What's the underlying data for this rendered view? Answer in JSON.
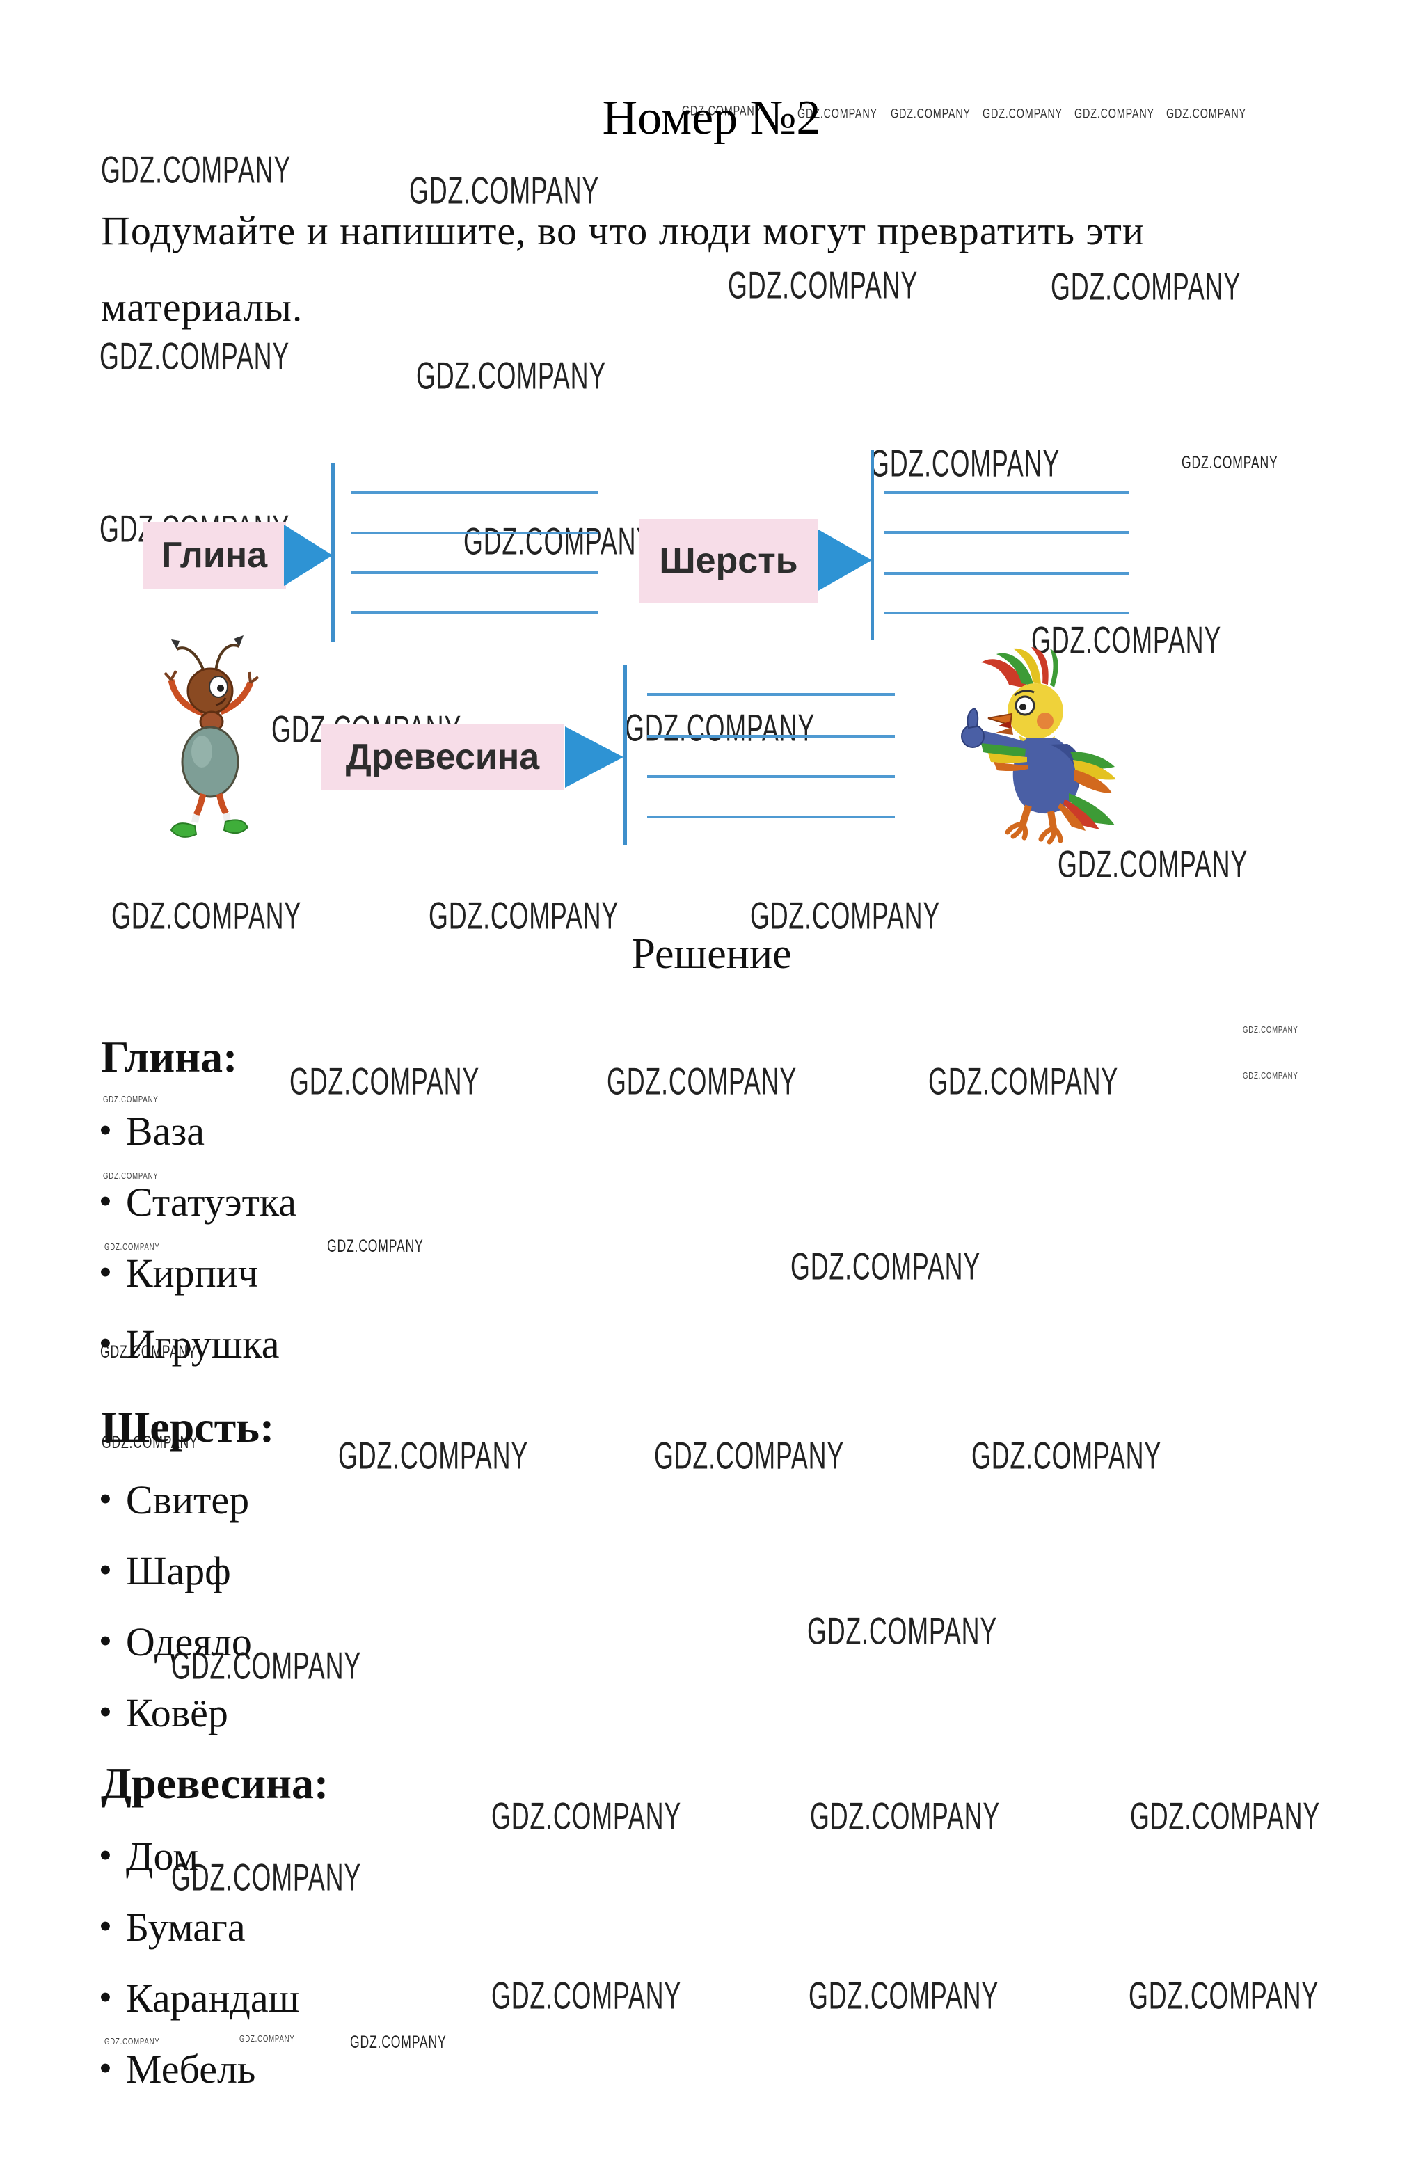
{
  "watermark": {
    "text": "GDZ.COMPANY"
  },
  "title": "Номер №2",
  "task": {
    "line1": "Подумайте и напишите, во что люди могут превратить эти",
    "line2": "материалы."
  },
  "diagram": {
    "labels": {
      "clay": "Глина",
      "wool": "Шерсть",
      "wood": "Древесина"
    }
  },
  "solution": {
    "heading": "Решение",
    "bullet": "•",
    "groups": [
      {
        "label": "Глина:",
        "items": [
          "Ваза",
          "Статуэтка",
          "Кирпич",
          "Игрушка"
        ]
      },
      {
        "label": "Шерсть:",
        "items": [
          "Свитер",
          "Шарф",
          "Одеяло",
          "Ковёр"
        ]
      },
      {
        "label": "Древесина:",
        "items": [
          "Дом",
          "Бумага",
          "Карандаш",
          "Мебель"
        ]
      }
    ]
  },
  "colors": {
    "label_bg": "#f7dde8",
    "arrow_blue": "#2e93d4",
    "line_blue": "#4f9ad2",
    "bracket_blue": "#3e8fcb"
  }
}
